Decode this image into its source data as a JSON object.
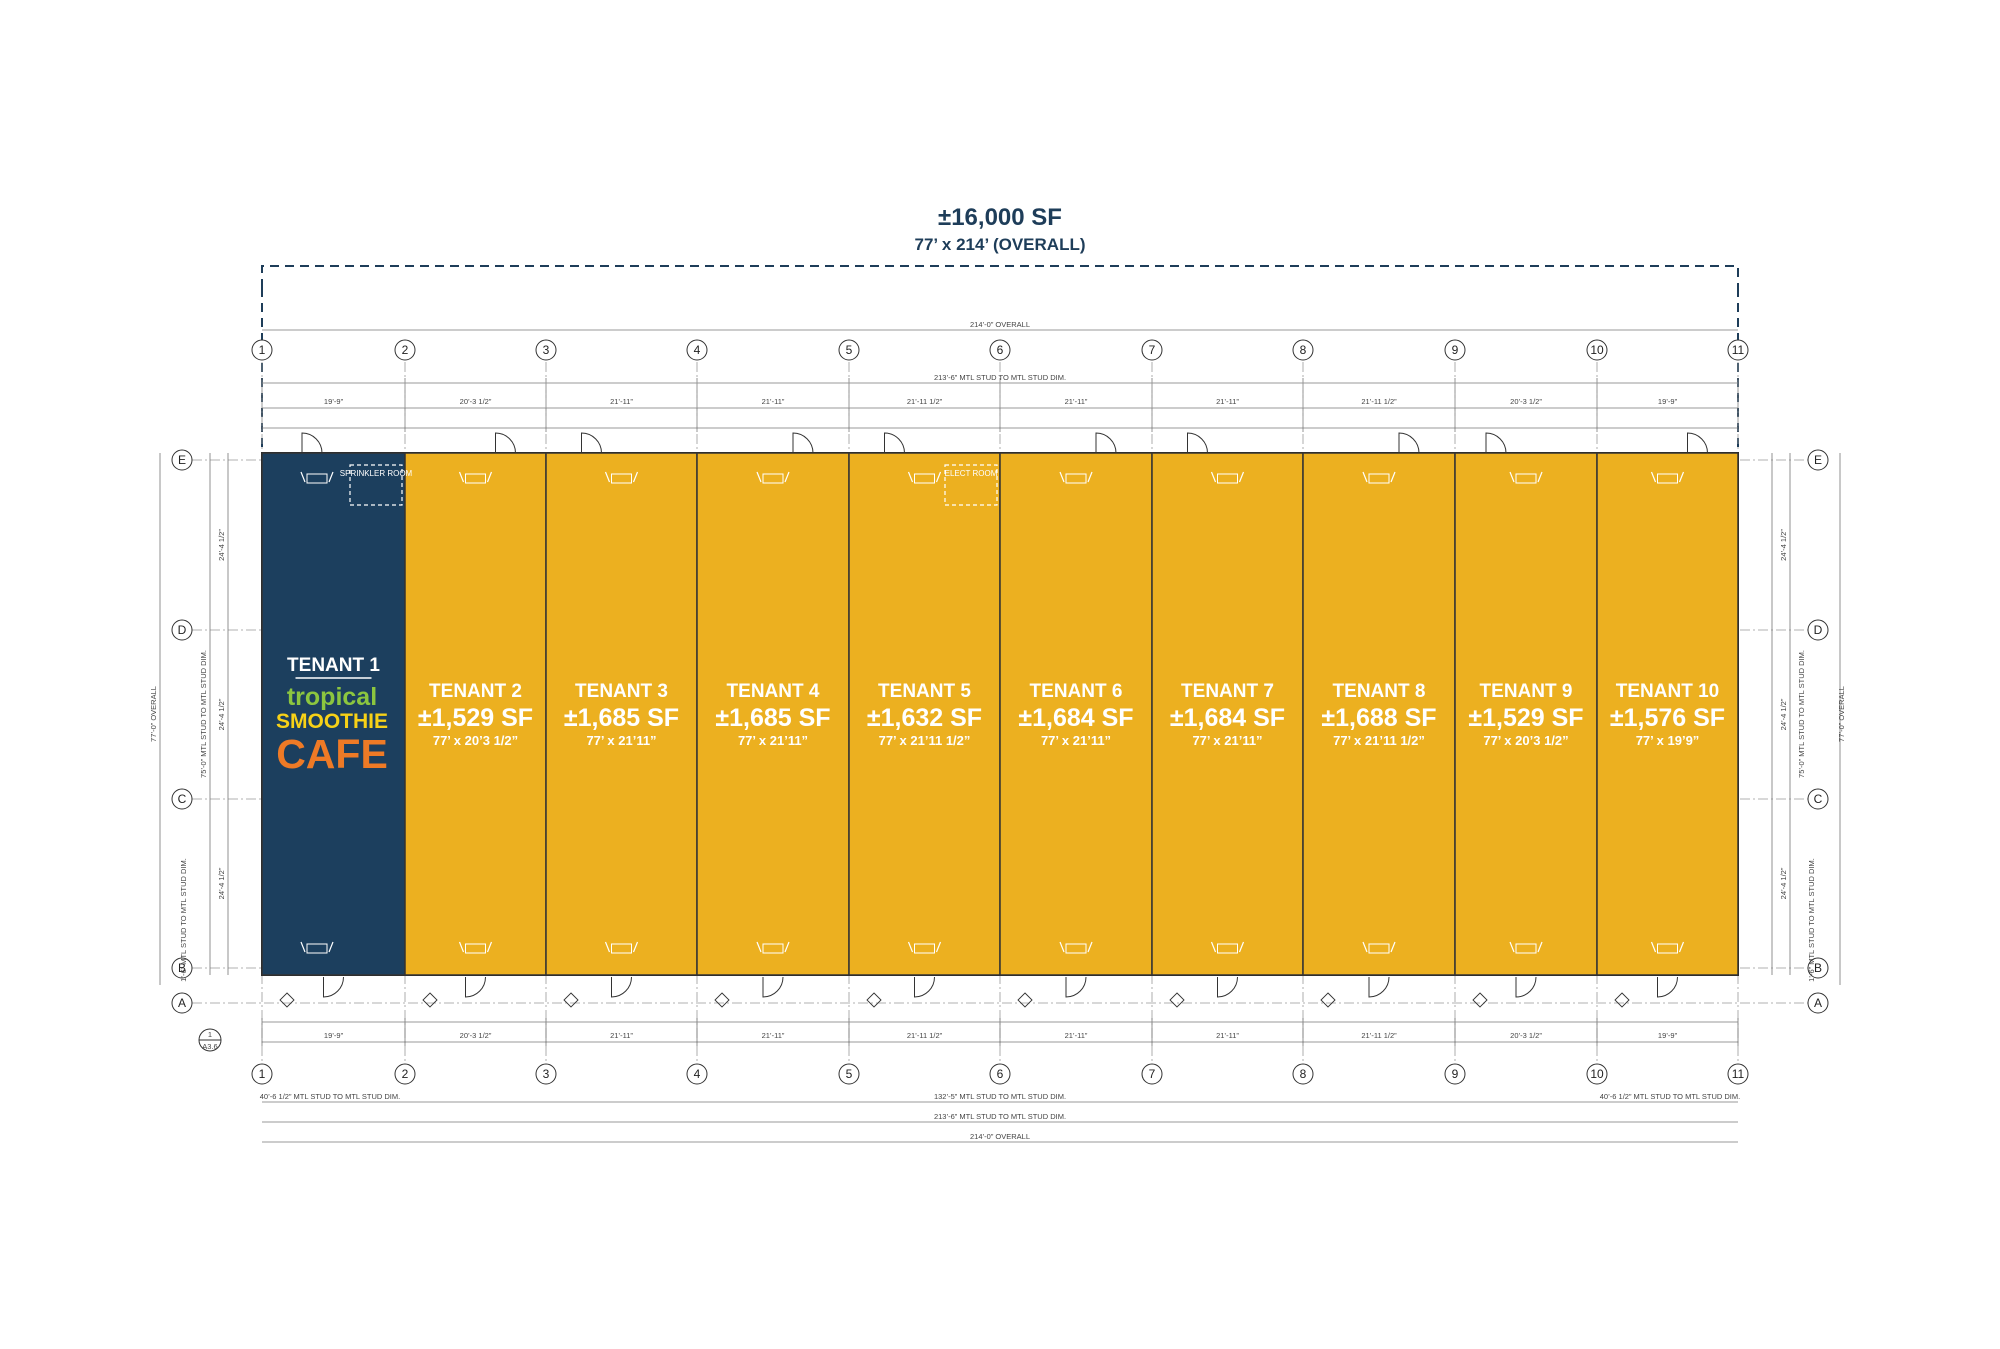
{
  "header": {
    "area": "±16,000 SF",
    "overall": "77’ x 214’ (OVERALL)"
  },
  "colors": {
    "anchor": "#1c3f5e",
    "tenant": "#ecb020",
    "line": "#333333",
    "header": "#1e3d59",
    "logo_green": "#8cc63f",
    "logo_yellow": "#f7d117",
    "logo_orange": "#ee7a26"
  },
  "grid": {
    "columns": [
      "1",
      "2",
      "3",
      "4",
      "5",
      "6",
      "7",
      "8",
      "9",
      "10",
      "11"
    ],
    "rows": [
      "E",
      "D",
      "C",
      "B",
      "A"
    ],
    "section_tag": "A3.6",
    "section_num": "1"
  },
  "dims": {
    "top_overall": "214’-0” OVERALL",
    "top_mtl": "213’-6” MTL STUD TO MTL STUD DIM.",
    "top_bays": [
      "19’-9”",
      "20’-3 1/2”",
      "21’-11”",
      "21’-11”",
      "21’-11 1/2”",
      "21’-11”",
      "21’-11”",
      "21’-11 1/2”",
      "20’-3 1/2”",
      "19’-9”"
    ],
    "bottom_bays": [
      "19’-9”",
      "20’-3 1/2”",
      "21’-11”",
      "21’-11”",
      "21’-11 1/2”",
      "21’-11”",
      "21’-11”",
      "21’-11 1/2”",
      "20’-3 1/2”",
      "19’-9”"
    ],
    "bottom_sub_left": "40’-6 1/2” MTL STUD TO MTL STUD DIM.",
    "bottom_sub_mid": "132’-5” MTL STUD TO MTL STUD DIM.",
    "bottom_sub_right": "40’-6 1/2” MTL STUD TO MTL STUD DIM.",
    "bottom_mtl": "213’-6” MTL STUD TO MTL STUD DIM.",
    "bottom_overall": "214’-0” OVERALL",
    "side_rows": [
      "24’-4 1/2”",
      "24’-4 1/2”",
      "24’-4 1/2”"
    ],
    "side_total": "75’-0” MTL STUD TO MTL STUD DIM.",
    "side_overall": "77’-0” OVERALL",
    "side_small": "1’-6” MTL STUD TO MTL STUD DIM."
  },
  "rooms": {
    "sprinkler": "SPRINKLER ROOM",
    "elect": "ELECT ROOM"
  },
  "logo": {
    "line1": "tropical",
    "line2": "SMOOTHIE",
    "line3": "CAFE"
  },
  "tenants": [
    {
      "name": "TENANT 1",
      "sf": "",
      "dim": ""
    },
    {
      "name": "TENANT 2",
      "sf": "±1,529 SF",
      "dim": "77’ x 20’3 1/2”"
    },
    {
      "name": "TENANT 3",
      "sf": "±1,685 SF",
      "dim": "77’ x 21’11”"
    },
    {
      "name": "TENANT 4",
      "sf": "±1,685 SF",
      "dim": "77’ x 21’11”"
    },
    {
      "name": "TENANT 5",
      "sf": "±1,632 SF",
      "dim": "77’ x 21’11 1/2”"
    },
    {
      "name": "TENANT 6",
      "sf": "±1,684 SF",
      "dim": "77’ x 21’11”"
    },
    {
      "name": "TENANT 7",
      "sf": "±1,684 SF",
      "dim": "77’ x 21’11”"
    },
    {
      "name": "TENANT 8",
      "sf": "±1,688 SF",
      "dim": "77’ x 21’11 1/2”"
    },
    {
      "name": "TENANT 9",
      "sf": "±1,529 SF",
      "dim": "77’ x 20’3 1/2”"
    },
    {
      "name": "TENANT 10",
      "sf": "±1,576 SF",
      "dim": "77’ x 19’9”"
    }
  ]
}
